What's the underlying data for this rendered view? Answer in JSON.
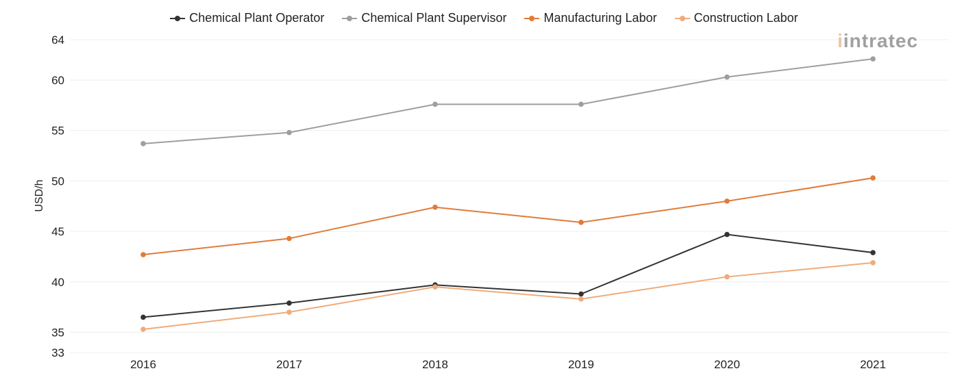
{
  "chart_data": {
    "type": "line",
    "title": "",
    "xlabel": "",
    "ylabel": "USD/h",
    "categories": [
      "2016",
      "2017",
      "2018",
      "2019",
      "2020",
      "2021"
    ],
    "ylim": [
      33,
      64
    ],
    "yticks": [
      33,
      35,
      40,
      45,
      50,
      55,
      60,
      64
    ],
    "grid": true,
    "legend_position": "top-center",
    "series": [
      {
        "name": "Chemical Plant Operator",
        "color": "#333333",
        "values": [
          36.5,
          37.9,
          39.7,
          38.8,
          44.7,
          42.9
        ]
      },
      {
        "name": "Chemical Plant Supervisor",
        "color": "#9e9e9e",
        "values": [
          53.7,
          54.8,
          57.6,
          57.6,
          60.3,
          62.1
        ]
      },
      {
        "name": "Manufacturing Labor",
        "color": "#e07b39",
        "values": [
          42.7,
          44.3,
          47.4,
          45.9,
          48.0,
          50.3
        ]
      },
      {
        "name": "Construction Labor",
        "color": "#efab7a",
        "values": [
          35.3,
          37.0,
          39.5,
          38.3,
          40.5,
          41.9
        ]
      }
    ]
  },
  "logo": {
    "mark": "i",
    "text": "intratec"
  }
}
